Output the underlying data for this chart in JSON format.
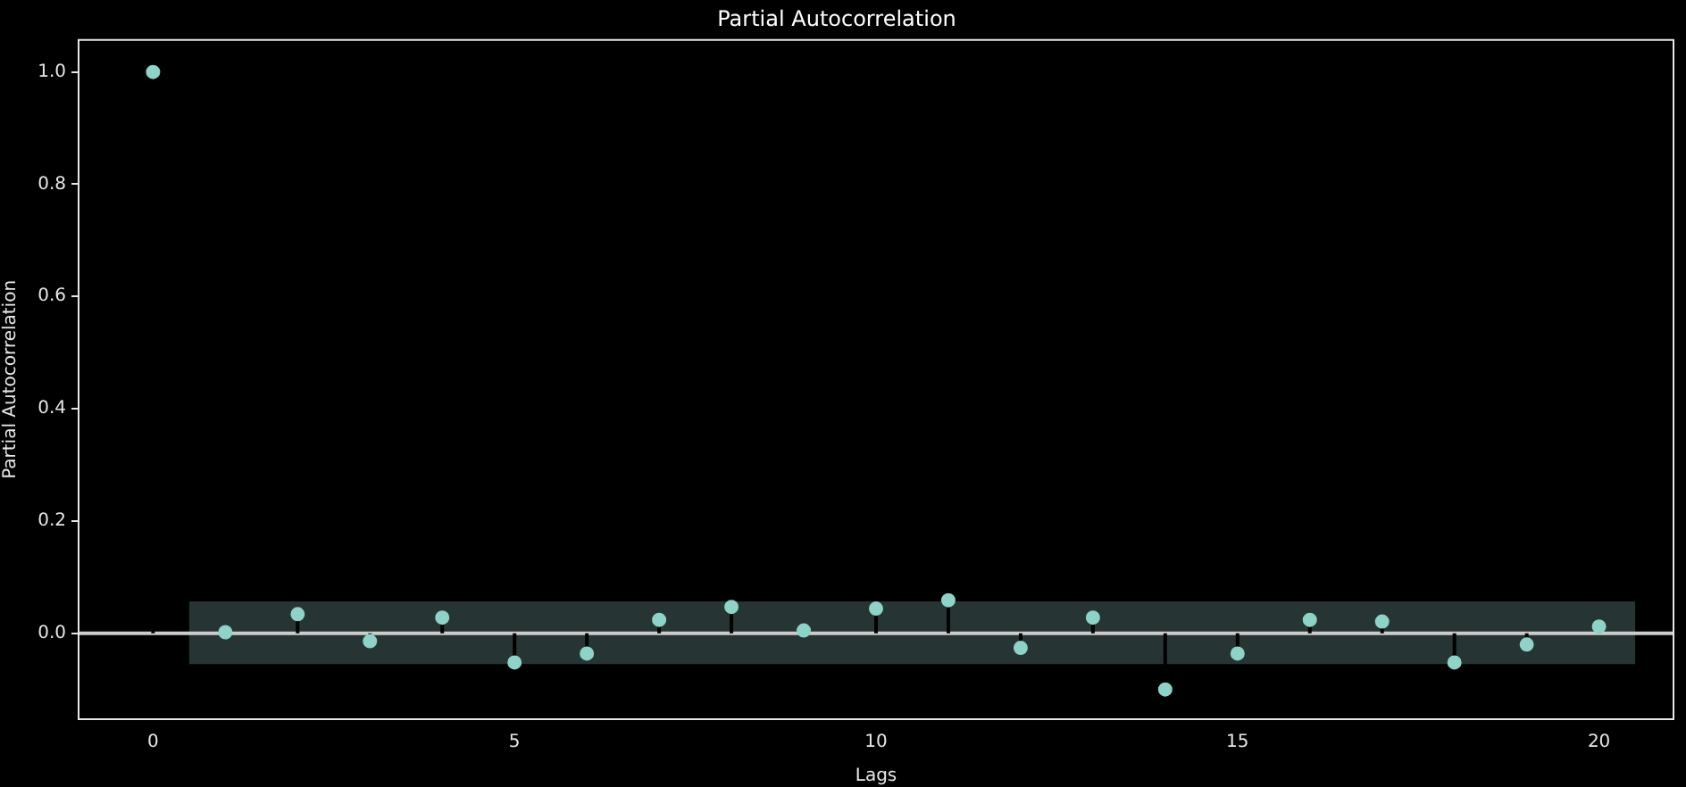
{
  "chart_data": {
    "type": "lollipop",
    "title": "Partial Autocorrelation",
    "xlabel": "Lags",
    "ylabel": "Partial Autocorrelation",
    "x": [
      0,
      1,
      2,
      3,
      4,
      5,
      6,
      7,
      8,
      9,
      10,
      11,
      12,
      13,
      14,
      15,
      16,
      17,
      18,
      19,
      20
    ],
    "series": [
      {
        "color": "#8dd3c7",
        "values": [
          1.0,
          0.002,
          0.034,
          -0.014,
          0.028,
          -0.052,
          -0.036,
          0.024,
          0.047,
          0.005,
          0.044,
          0.059,
          -0.026,
          0.028,
          -0.1,
          -0.036,
          0.024,
          0.021,
          -0.052,
          -0.02,
          0.012
        ]
      }
    ],
    "ref_lines": [
      {
        "axis": "y",
        "value": 0,
        "color": "#cccccc"
      }
    ],
    "bands": [
      {
        "axis": "y",
        "from": -0.055,
        "to": 0.057,
        "color": "#263533"
      }
    ],
    "xlim": [
      -1.03,
      21.03
    ],
    "xticks": [
      0,
      5,
      10,
      15,
      20
    ],
    "ylim": [
      -0.153,
      1.057
    ],
    "yticks": [
      {
        "value": 0,
        "label": "0.0"
      },
      {
        "value": 0.2,
        "label": "0.2"
      },
      {
        "value": 0.4,
        "label": "0.4"
      },
      {
        "value": 0.6,
        "label": "0.6"
      },
      {
        "value": 0.8,
        "label": "0.8"
      },
      {
        "value": 1.0,
        "label": "1.0"
      }
    ],
    "marker": "circle",
    "grid": false,
    "legend": false
  }
}
